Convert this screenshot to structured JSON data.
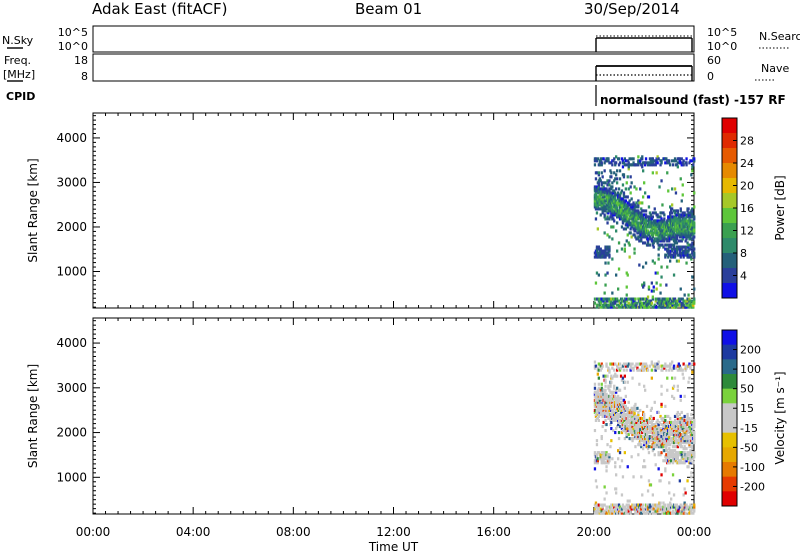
{
  "header": {
    "station": "Adak East (fitACF)",
    "beam": "Beam 01",
    "date": "30/Sep/2014"
  },
  "info_panel": {
    "nsky_label": "N.Sky",
    "nsky_ticks": [
      "10^5",
      "10^0"
    ],
    "nsearch_label": "N.Search",
    "freq_label_1": "Freq.",
    "freq_label_2": "[MHz]",
    "freq_ticks": [
      "18",
      "8"
    ],
    "nave_ticks": [
      "60",
      "0"
    ],
    "nave_label": "Nave",
    "cpid_label": "CPID",
    "cpid_text": "normalsound (fast) -157 RF"
  },
  "colors": {
    "power_scale": [
      "#1010e6",
      "#2a3f9a",
      "#24607a",
      "#2e8a6a",
      "#3aa050",
      "#5ec63a",
      "#a6c828",
      "#e6b800",
      "#e68a00",
      "#e65a00",
      "#e02a00",
      "#e00000"
    ],
    "velocity_scale": [
      "#e00000",
      "#e63a00",
      "#e67a00",
      "#e6a800",
      "#e6c000",
      "#c8c8c8",
      "#c8c8c8",
      "#7ad23c",
      "#2e8a3a",
      "#2a6a8a",
      "#1d3aa0",
      "#1010e6"
    ]
  },
  "chart_data": [
    {
      "type": "heatmap",
      "name": "power_panel",
      "ylabel": "Slant Range [km]",
      "xlabel": "Time UT",
      "x_ticks": [
        "00:00",
        "04:00",
        "08:00",
        "12:00",
        "16:00",
        "20:00",
        "00:00"
      ],
      "xlim_hours": [
        0,
        24
      ],
      "y_ticks": [
        1000,
        2000,
        3000,
        4000
      ],
      "ylim": [
        180,
        4560
      ],
      "colorbar_label": "Power [dB]",
      "colorbar_ticks": [
        "28",
        "24",
        "20",
        "16",
        "12",
        "8",
        "4"
      ],
      "data_start_hour": 20.0,
      "data_end_hour": 24.0,
      "features": [
        {
          "desc": "main band",
          "start_range_km": 2600,
          "end_range_km": 1950,
          "level": "strong"
        },
        {
          "desc": "lower band",
          "range_km": 1450,
          "level": "weak"
        },
        {
          "desc": "near-range clutter",
          "range_km": 300,
          "level": "mixed"
        },
        {
          "desc": "far-range sparse",
          "range_km": 3500,
          "level": "weak"
        }
      ]
    },
    {
      "type": "heatmap",
      "name": "velocity_panel",
      "ylabel": "Slant Range [km]",
      "xlabel": "Time UT",
      "x_ticks": [
        "00:00",
        "04:00",
        "08:00",
        "12:00",
        "16:00",
        "20:00",
        "00:00"
      ],
      "xlim_hours": [
        0,
        24
      ],
      "y_ticks": [
        1000,
        2000,
        3000,
        4000
      ],
      "ylim": [
        180,
        4560
      ],
      "colorbar_label": "Velocity [m s⁻¹]",
      "colorbar_ticks": [
        "200",
        "100",
        "50",
        "15",
        "-15",
        "-50",
        "-100",
        "-200"
      ],
      "data_start_hour": 20.0,
      "data_end_hour": 24.0
    }
  ]
}
